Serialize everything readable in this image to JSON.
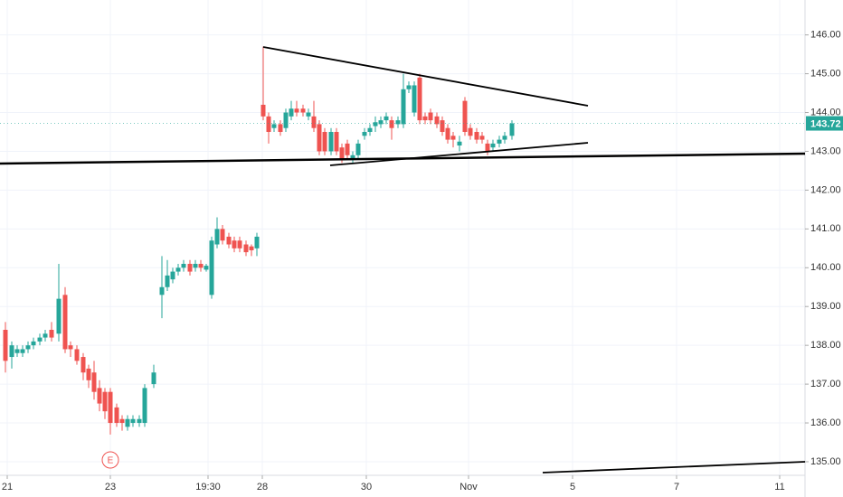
{
  "chart_data": {
    "type": "candlestick",
    "up_color": "#26a69a",
    "down_color": "#ef5350",
    "x": [
      6,
      13,
      19,
      25,
      31,
      37,
      44,
      50,
      57,
      65,
      72,
      78,
      85,
      92,
      98,
      104,
      110,
      116,
      122,
      129,
      135,
      141,
      147,
      154,
      160,
      170,
      179,
      185,
      191,
      197,
      203,
      210,
      216,
      222,
      228,
      234,
      240,
      246,
      253,
      259,
      265,
      272,
      278,
      284,
      291,
      297,
      303,
      310,
      316,
      322,
      328,
      335,
      341,
      347,
      353,
      359,
      366,
      372,
      378,
      384,
      390,
      396,
      403,
      409,
      415,
      421,
      427,
      433,
      440,
      446,
      452,
      458,
      464,
      470,
      476,
      483,
      489,
      495,
      501,
      508,
      514,
      520,
      527,
      533,
      539,
      545,
      552,
      558,
      566
    ],
    "open": [
      138.4,
      137.7,
      137.8,
      137.8,
      137.9,
      138.0,
      138.1,
      138.2,
      138.4,
      138.3,
      139.3,
      138.0,
      137.9,
      137.7,
      137.4,
      137.3,
      136.9,
      136.8,
      136.8,
      136.4,
      136.1,
      135.9,
      136.0,
      136.0,
      136.0,
      137.0,
      139.3,
      139.5,
      139.7,
      139.9,
      140.0,
      140.1,
      140.0,
      140.1,
      139.95,
      139.3,
      140.6,
      141.0,
      140.8,
      140.7,
      140.7,
      140.6,
      140.55,
      140.5,
      144.2,
      143.9,
      143.6,
      143.7,
      143.6,
      143.9,
      144.1,
      144.1,
      143.9,
      143.9,
      143.7,
      143.5,
      143.0,
      143.5,
      143.1,
      143.2,
      142.8,
      142.9,
      143.4,
      143.5,
      143.65,
      143.7,
      143.8,
      143.8,
      143.7,
      143.7,
      144.6,
      144.0,
      144.9,
      143.9,
      144.0,
      143.9,
      143.8,
      143.6,
      143.4,
      143.15,
      144.3,
      143.6,
      143.5,
      143.4,
      143.2,
      143.1,
      143.2,
      143.3,
      143.4
    ],
    "high": [
      138.6,
      138.1,
      138.0,
      138.0,
      138.1,
      138.2,
      138.3,
      138.4,
      138.6,
      140.1,
      139.5,
      138.1,
      138.0,
      137.8,
      137.5,
      137.6,
      137.1,
      136.9,
      136.9,
      136.5,
      136.2,
      136.2,
      136.2,
      136.2,
      137.0,
      137.5,
      140.3,
      140.2,
      140.0,
      140.1,
      140.2,
      140.2,
      140.2,
      140.2,
      140.1,
      140.8,
      141.3,
      141.1,
      140.9,
      140.8,
      140.8,
      140.7,
      140.6,
      140.9,
      145.7,
      144.0,
      143.8,
      143.8,
      144.1,
      144.3,
      144.3,
      144.2,
      144.1,
      144.3,
      143.8,
      143.6,
      143.6,
      143.6,
      143.2,
      143.3,
      143.0,
      143.3,
      143.6,
      143.7,
      143.9,
      143.9,
      144.0,
      143.9,
      143.9,
      145.0,
      144.8,
      144.8,
      145.0,
      144.0,
      144.1,
      144.0,
      143.9,
      143.7,
      143.5,
      143.4,
      144.4,
      143.7,
      143.6,
      143.5,
      143.3,
      143.3,
      143.4,
      143.5,
      143.8
    ],
    "low": [
      137.3,
      137.4,
      137.7,
      137.7,
      137.8,
      137.9,
      138.0,
      138.1,
      138.1,
      138.1,
      137.8,
      137.7,
      137.5,
      137.1,
      136.9,
      136.6,
      136.3,
      136.1,
      135.7,
      135.9,
      135.8,
      135.8,
      135.9,
      135.9,
      135.9,
      136.9,
      138.7,
      139.4,
      139.6,
      139.8,
      139.9,
      139.8,
      139.9,
      139.9,
      139.9,
      139.2,
      140.5,
      140.6,
      140.5,
      140.4,
      140.4,
      140.3,
      140.3,
      140.3,
      143.8,
      143.2,
      143.5,
      143.4,
      143.5,
      143.8,
      143.9,
      143.9,
      143.8,
      143.5,
      142.9,
      142.9,
      142.9,
      142.9,
      142.7,
      142.8,
      142.7,
      142.8,
      143.3,
      143.4,
      143.5,
      143.6,
      143.7,
      143.3,
      143.6,
      143.6,
      144.5,
      143.9,
      143.7,
      143.7,
      143.7,
      143.6,
      143.4,
      143.2,
      143.1,
      143.0,
      143.4,
      143.3,
      143.2,
      143.2,
      142.9,
      143.0,
      143.1,
      143.2,
      143.3
    ],
    "close": [
      137.6,
      138.0,
      137.9,
      137.9,
      138.0,
      138.1,
      138.2,
      138.3,
      138.2,
      139.2,
      137.9,
      137.9,
      137.6,
      137.3,
      137.1,
      136.8,
      136.5,
      136.3,
      136.0,
      136.0,
      136.0,
      136.1,
      136.1,
      136.1,
      136.9,
      137.3,
      139.5,
      139.8,
      139.9,
      140.0,
      140.1,
      139.9,
      140.1,
      140.0,
      140.05,
      140.7,
      141.0,
      140.7,
      140.6,
      140.5,
      140.5,
      140.4,
      140.45,
      140.8,
      143.9,
      143.5,
      143.7,
      143.5,
      144.0,
      144.1,
      144.0,
      144.0,
      144.0,
      143.6,
      143.0,
      143.0,
      143.5,
      143.0,
      142.8,
      142.9,
      142.9,
      143.2,
      143.5,
      143.6,
      143.75,
      143.8,
      143.9,
      143.6,
      143.8,
      144.6,
      144.7,
      144.7,
      143.8,
      143.8,
      143.8,
      143.7,
      143.5,
      143.3,
      143.3,
      143.25,
      143.5,
      143.4,
      143.3,
      143.3,
      143.0,
      143.2,
      143.3,
      143.4,
      143.72
    ],
    "last_price": 143.72,
    "earnings_marker": "E",
    "xlim": [
      0,
      890
    ],
    "ylim": [
      134.65,
      146.9
    ],
    "xticks": [
      {
        "value": 8,
        "label": "21"
      },
      {
        "value": 122,
        "label": "23"
      },
      {
        "value": 230,
        "label": "19:30"
      },
      {
        "value": 290,
        "label": "28"
      },
      {
        "value": 405,
        "label": "30"
      },
      {
        "value": 518,
        "label": "Nov"
      },
      {
        "value": 633,
        "label": "5"
      },
      {
        "value": 748,
        "label": "7"
      },
      {
        "value": 862,
        "label": "11"
      }
    ],
    "yticks": [
      {
        "value": 135,
        "label": "135.00"
      },
      {
        "value": 136,
        "label": "136.00"
      },
      {
        "value": 137,
        "label": "137.00"
      },
      {
        "value": 138,
        "label": "138.00"
      },
      {
        "value": 139,
        "label": "139.00"
      },
      {
        "value": 140,
        "label": "140.00"
      },
      {
        "value": 141,
        "label": "141.00"
      },
      {
        "value": 142,
        "label": "142.00"
      },
      {
        "value": 143,
        "label": "143.00"
      },
      {
        "value": 144,
        "label": "144.00"
      },
      {
        "value": 145,
        "label": "145.00"
      },
      {
        "value": 146,
        "label": "146.00"
      }
    ],
    "grid": true
  }
}
